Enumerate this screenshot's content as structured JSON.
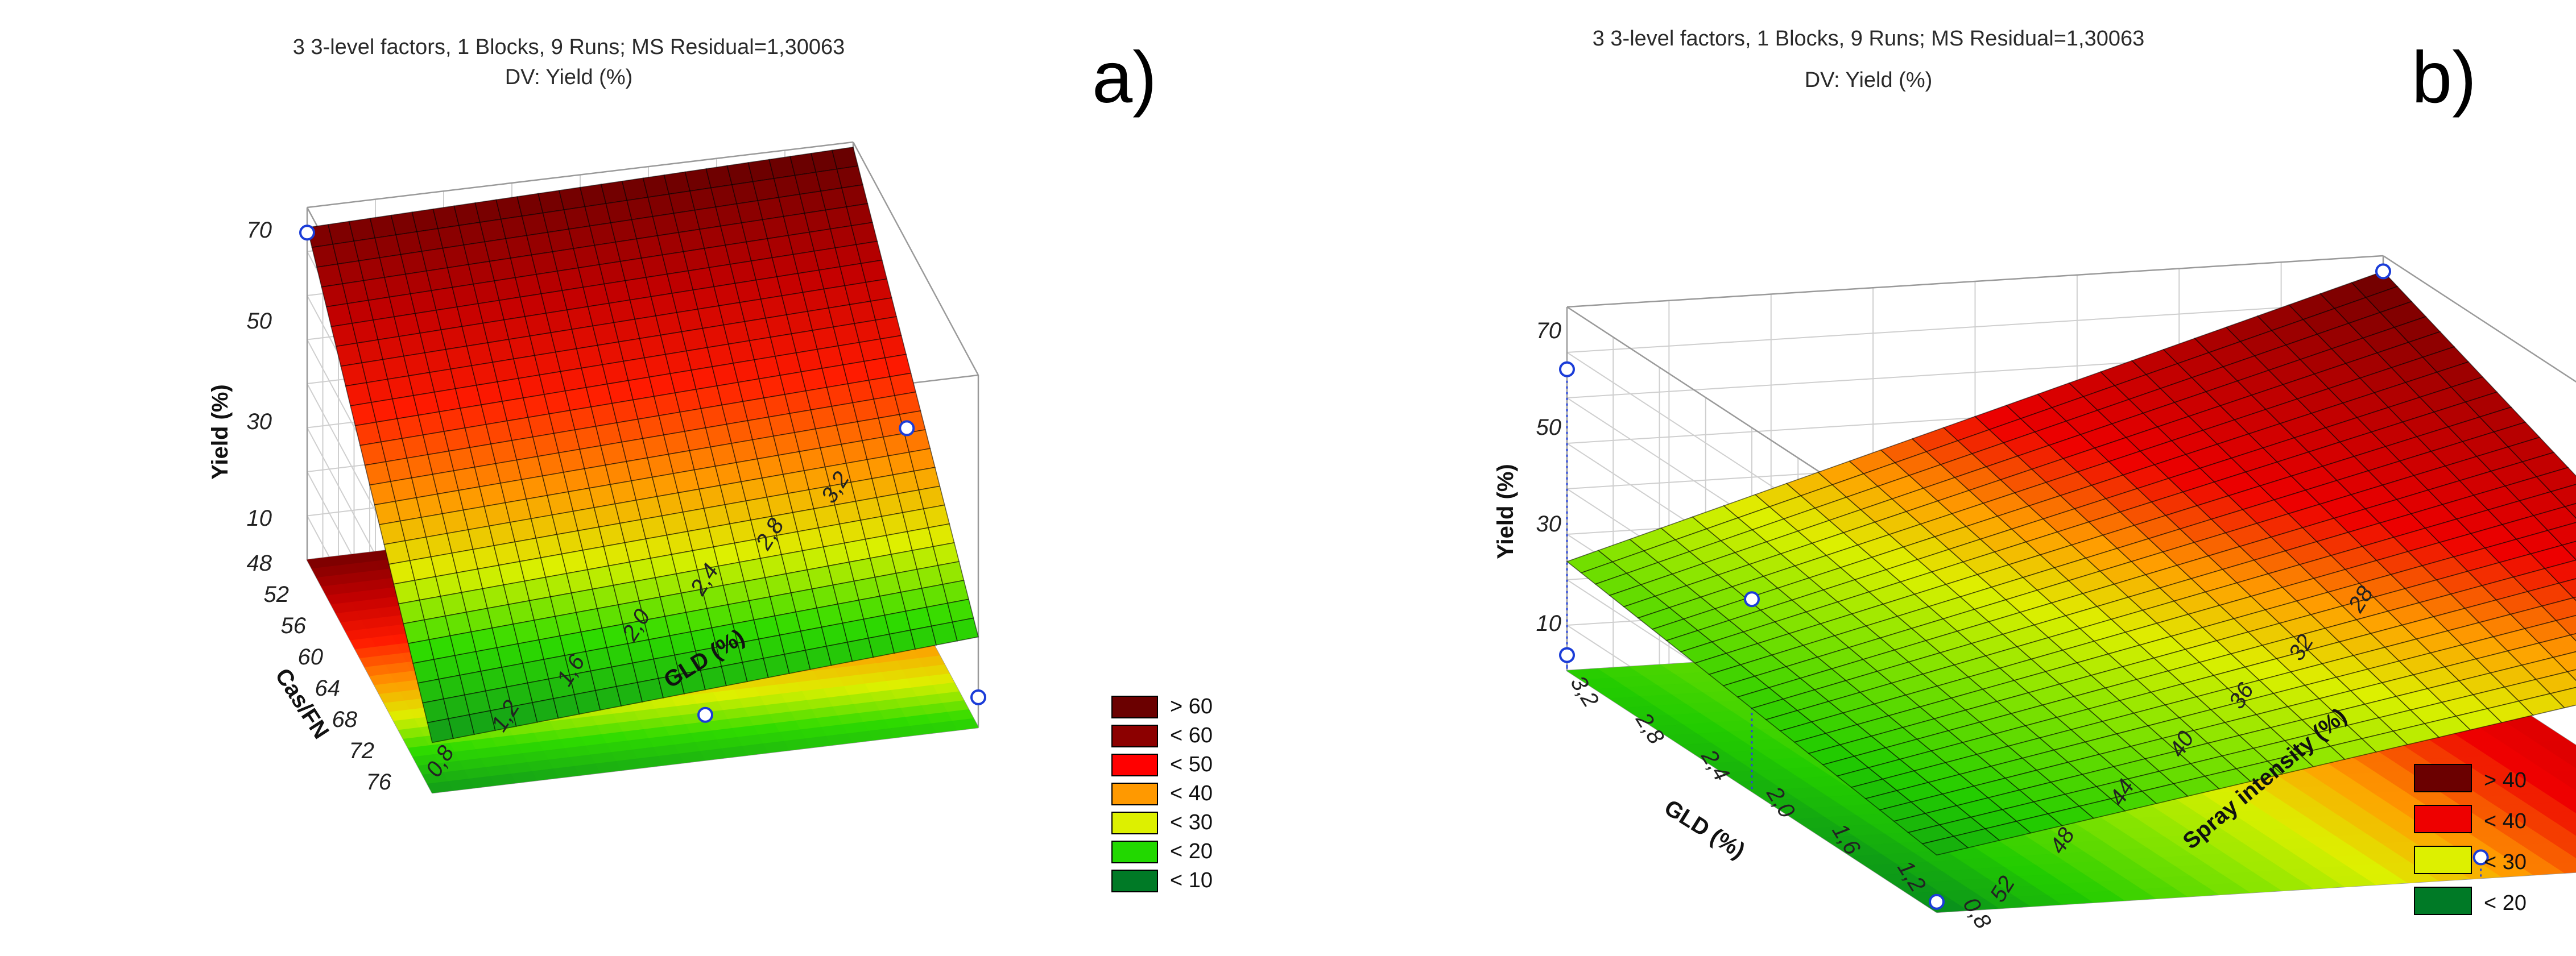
{
  "chart_data": [
    {
      "type": "surface3d",
      "panel_label": "a)",
      "title": "3 3-level factors, 1 Blocks, 9 Runs; MS Residual=1,30063",
      "subtitle": "DV: Yield (%)",
      "xlabel": "GLD (%)",
      "ylabel": "Cas/FN",
      "zlabel": "Yield (%)",
      "x_ticks": [
        "0,8",
        "1,2",
        "1,6",
        "2,0",
        "2,4",
        "2,8",
        "3,2"
      ],
      "y_ticks": [
        "48",
        "52",
        "56",
        "60",
        "64",
        "68",
        "72",
        "76"
      ],
      "z_ticks": [
        "10",
        "30",
        "50",
        "70"
      ],
      "xlim": [
        0.8,
        3.2
      ],
      "ylim": [
        48,
        76
      ],
      "zlim": [
        0,
        70
      ],
      "surface_corners": [
        {
          "gld": 0.8,
          "cas_fn": 48,
          "yield": 66
        },
        {
          "gld": 3.2,
          "cas_fn": 48,
          "yield": 69
        },
        {
          "gld": 3.2,
          "cas_fn": 76,
          "yield": 18
        },
        {
          "gld": 0.8,
          "cas_fn": 76,
          "yield": 10
        }
      ],
      "observed_points": [
        {
          "gld": 0.8,
          "cas_fn": 48,
          "yield": 65
        },
        {
          "gld": 3.2,
          "cas_fn": 60,
          "yield": 33
        },
        {
          "gld": 2.0,
          "cas_fn": 76,
          "yield": 9
        },
        {
          "gld": 3.2,
          "cas_fn": 76,
          "yield": 6
        }
      ],
      "legend": {
        "placement": "bottom-right",
        "entries": [
          {
            "label": "> 60",
            "color": "#6b0000"
          },
          {
            "label": "< 60",
            "color": "#8c0000"
          },
          {
            "label": "< 50",
            "color": "#ff0000"
          },
          {
            "label": "< 40",
            "color": "#ff9900"
          },
          {
            "label": "< 30",
            "color": "#ddf000"
          },
          {
            "label": "< 20",
            "color": "#22d800"
          },
          {
            "label": "< 10",
            "color": "#007a26"
          }
        ]
      }
    },
    {
      "type": "surface3d",
      "panel_label": "b)",
      "title": "3 3-level factors, 1 Blocks, 9 Runs; MS Residual=1,30063",
      "subtitle": "DV: Yield (%)",
      "xlabel": "GLD (%)",
      "ylabel": "Spray intensity (%)",
      "zlabel": "Yield (%)",
      "x_ticks": [
        "3,2",
        "2,8",
        "2,4",
        "2,0",
        "1,6",
        "1,2",
        "0,8"
      ],
      "y_ticks": [
        "52",
        "48",
        "44",
        "40",
        "36",
        "32",
        "28"
      ],
      "z_ticks": [
        "10",
        "30",
        "50",
        "70"
      ],
      "xlim": [
        0.8,
        3.2
      ],
      "ylim": [
        28,
        52
      ],
      "zlim": [
        0,
        70
      ],
      "surface_corners": [
        {
          "gld": 3.2,
          "spray": 52,
          "yield": 21
        },
        {
          "gld": 0.8,
          "spray": 52,
          "yield": 11
        },
        {
          "gld": 0.8,
          "spray": 28,
          "yield": 38
        },
        {
          "gld": 3.2,
          "spray": 28,
          "yield": 67
        }
      ],
      "observed_points": [
        {
          "gld": 3.2,
          "spray": 52,
          "yield": 58
        },
        {
          "gld": 3.2,
          "spray": 28,
          "yield": 67
        },
        {
          "gld": 2.0,
          "spray": 52,
          "yield": 37
        },
        {
          "gld": 3.2,
          "spray": 52,
          "yield": 3
        },
        {
          "gld": 0.8,
          "spray": 52,
          "yield": 2
        },
        {
          "gld": 0.8,
          "spray": 36,
          "yield": 4
        }
      ],
      "legend": {
        "placement": "bottom-right",
        "entries": [
          {
            "label": "> 40",
            "color": "#6b0000"
          },
          {
            "label": "< 40",
            "color": "#ee0000"
          },
          {
            "label": "< 30",
            "color": "#ddf000"
          },
          {
            "label": "< 20",
            "color": "#007a26"
          }
        ]
      }
    }
  ]
}
